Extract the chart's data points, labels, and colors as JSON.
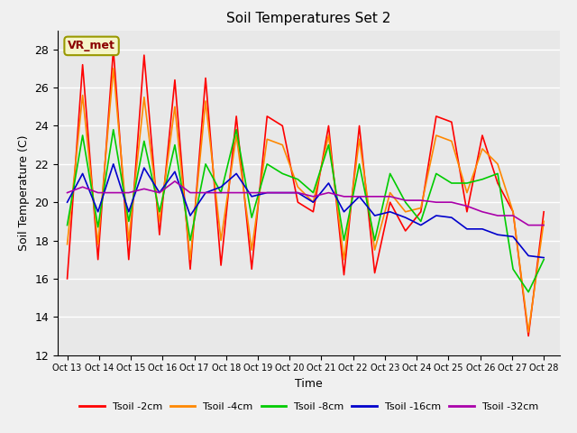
{
  "title": "Soil Temperatures Set 2",
  "xlabel": "Time",
  "ylabel": "Soil Temperature (C)",
  "ylim": [
    12,
    29
  ],
  "yticks": [
    12,
    14,
    16,
    18,
    20,
    22,
    24,
    26,
    28
  ],
  "annotation_text": "VR_met",
  "bg_color": "#e8e8e8",
  "fig_bg_color": "#f0f0f0",
  "legend_labels": [
    "Tsoil -2cm",
    "Tsoil -4cm",
    "Tsoil -8cm",
    "Tsoil -16cm",
    "Tsoil -32cm"
  ],
  "line_colors": [
    "#ff0000",
    "#ff8800",
    "#00cc00",
    "#0000cc",
    "#aa00aa"
  ],
  "x_tick_labels": [
    "Oct 13",
    "Oct 14",
    "Oct 15",
    "Oct 16",
    "Oct 17",
    "Oct 18",
    "Oct 19",
    "Oct 20",
    "Oct 21",
    "Oct 22",
    "Oct 23",
    "Oct 24",
    "Oct 25",
    "Oct 26",
    "Oct 27",
    "Oct 28"
  ],
  "tsoil_2cm": [
    16.0,
    27.2,
    17.0,
    28.0,
    17.0,
    27.7,
    18.3,
    26.4,
    16.5,
    26.5,
    16.7,
    24.5,
    16.5,
    24.5,
    24.0,
    20.0,
    19.5,
    24.0,
    16.2,
    24.0,
    16.3,
    20.0,
    18.5,
    19.5,
    24.5,
    24.2,
    19.5,
    23.5,
    21.0,
    19.5,
    13.0,
    19.5
  ],
  "tsoil_4cm": [
    17.8,
    25.6,
    17.8,
    27.0,
    18.0,
    25.5,
    19.0,
    25.0,
    17.0,
    25.3,
    18.0,
    23.5,
    17.5,
    23.3,
    23.0,
    20.8,
    20.0,
    23.5,
    17.0,
    23.3,
    17.5,
    20.5,
    19.5,
    19.7,
    23.5,
    23.2,
    20.5,
    22.8,
    22.0,
    19.5,
    13.2,
    19.0
  ],
  "tsoil_8cm": [
    18.8,
    23.5,
    18.7,
    23.8,
    19.0,
    23.2,
    19.5,
    23.0,
    18.0,
    22.0,
    20.5,
    23.8,
    19.2,
    22.0,
    21.5,
    21.2,
    20.5,
    23.0,
    18.0,
    22.0,
    18.0,
    21.5,
    20.0,
    19.0,
    21.5,
    21.0,
    21.0,
    21.2,
    21.5,
    16.5,
    15.3,
    17.0
  ],
  "tsoil_16cm": [
    20.0,
    21.5,
    19.5,
    22.0,
    19.5,
    21.8,
    20.5,
    21.6,
    19.3,
    20.5,
    20.8,
    21.5,
    20.3,
    20.5,
    20.5,
    20.5,
    20.0,
    21.0,
    19.5,
    20.3,
    19.3,
    19.5,
    19.2,
    18.8,
    19.3,
    19.2,
    18.6,
    18.6,
    18.3,
    18.2,
    17.2,
    17.1
  ],
  "tsoil_32cm": [
    20.5,
    20.8,
    20.5,
    20.5,
    20.5,
    20.7,
    20.5,
    21.1,
    20.5,
    20.5,
    20.5,
    20.5,
    20.5,
    20.5,
    20.5,
    20.5,
    20.3,
    20.5,
    20.3,
    20.3,
    20.3,
    20.3,
    20.1,
    20.1,
    20.0,
    20.0,
    19.8,
    19.5,
    19.3,
    19.3,
    18.8,
    18.8
  ]
}
